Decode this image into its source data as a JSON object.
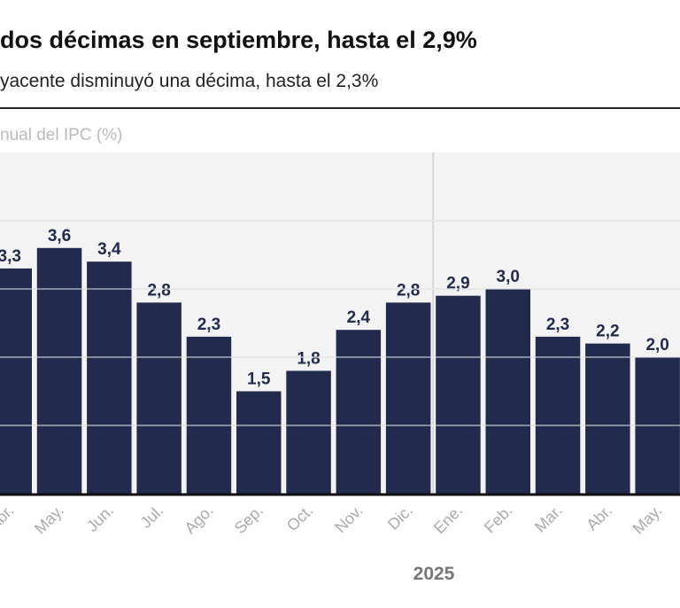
{
  "chart_data": {
    "type": "bar",
    "title": "dos décimas en septiembre, hasta el 2,9%",
    "subtitle": "yacente disminuyó una décima, hasta el 2,3%",
    "ylabel": "nual del IPC (%)",
    "xlabel": "",
    "year_label": "2025",
    "categories": [
      "Abr.",
      "May.",
      "Jun.",
      "Jul.",
      "Ago.",
      "Sep.",
      "Oct.",
      "Nov.",
      "Dic.",
      "Ene.",
      "Feb.",
      "Mar.",
      "Abr.",
      "May."
    ],
    "values": [
      3.3,
      3.6,
      3.4,
      2.8,
      2.3,
      1.5,
      1.8,
      2.4,
      2.8,
      2.9,
      3.0,
      2.3,
      2.2,
      2.0
    ],
    "labels": [
      "3,3",
      "3,6",
      "3,4",
      "2,8",
      "2,3",
      "1,5",
      "1,8",
      "2,4",
      "2,8",
      "2,9",
      "3,0",
      "2,3",
      "2,2",
      "2,0"
    ],
    "ylim": [
      0,
      5
    ],
    "grid": true,
    "year_start_index": 9,
    "colors": {
      "bar": "#222a4d",
      "plot_bg": "#f3f3f3",
      "grid": "#d6d6d6",
      "tick": "#aaaaaa",
      "year": "#777777"
    }
  }
}
